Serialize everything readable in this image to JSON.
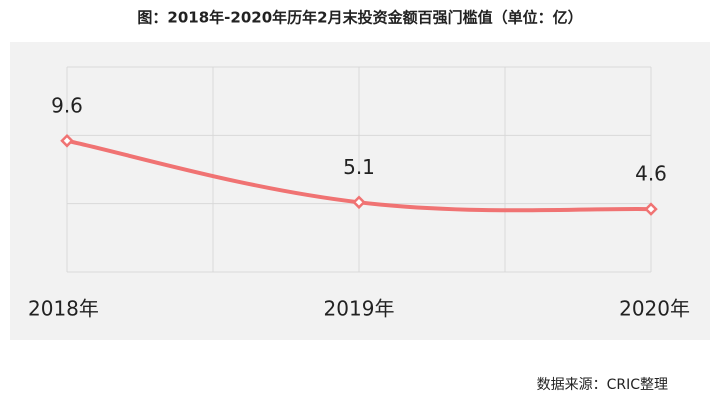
{
  "chart_data": {
    "type": "line",
    "title": "图：2018年-2020年历年2月末投资金额百强门槛值（单位：亿）",
    "categories": [
      "2018年",
      "2019年",
      "2020年"
    ],
    "series": [
      {
        "name": "门槛值",
        "color": "#f07373",
        "values": [
          9.6,
          5.1,
          4.6
        ]
      }
    ],
    "ylim": [
      0,
      15
    ],
    "yticks": [
      0,
      5,
      10,
      15
    ],
    "grid": true,
    "source": "数据来源：CRIC整理"
  }
}
